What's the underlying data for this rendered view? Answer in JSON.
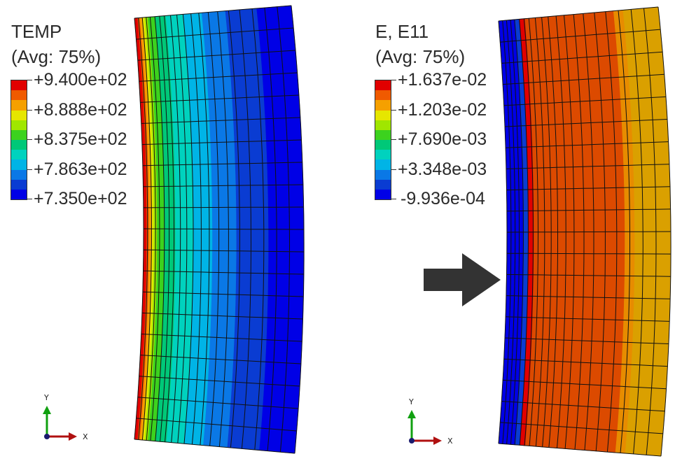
{
  "left": {
    "field": "TEMP",
    "averaging": "(Avg: 75%)",
    "tick_labels": [
      "+9.400e+02",
      "+8.888e+02",
      "+8.375e+02",
      "+7.863e+02",
      "+7.350e+02"
    ],
    "contour_colors": [
      "#e10000",
      "#f05a00",
      "#f5a000",
      "#e6e600",
      "#a0e600",
      "#3cd21e",
      "#00c878",
      "#00d2be",
      "#00b4e6",
      "#0a78e6",
      "#0a3cd2",
      "#0000e6"
    ],
    "axis_x": "X",
    "axis_y": "Y"
  },
  "right": {
    "field": "E, E11",
    "averaging": "(Avg: 75%)",
    "tick_labels": [
      "+1.637e-02",
      "+1.203e-02",
      "+7.690e-03",
      "+3.348e-03",
      "-9.936e-04"
    ],
    "contour_colors": [
      "#e10000",
      "#f05a00",
      "#f5a000",
      "#e6e600",
      "#a0e600",
      "#3cd21e",
      "#00c878",
      "#00d2be",
      "#00b4e6",
      "#0a78e6",
      "#0a3cd2",
      "#0000e6"
    ],
    "axis_x": "X",
    "axis_y": "Y"
  },
  "colors": {
    "arrow": "#333333",
    "triad_x": "#b01010",
    "triad_y": "#10a010",
    "triad_origin": "#1a1a6e"
  }
}
